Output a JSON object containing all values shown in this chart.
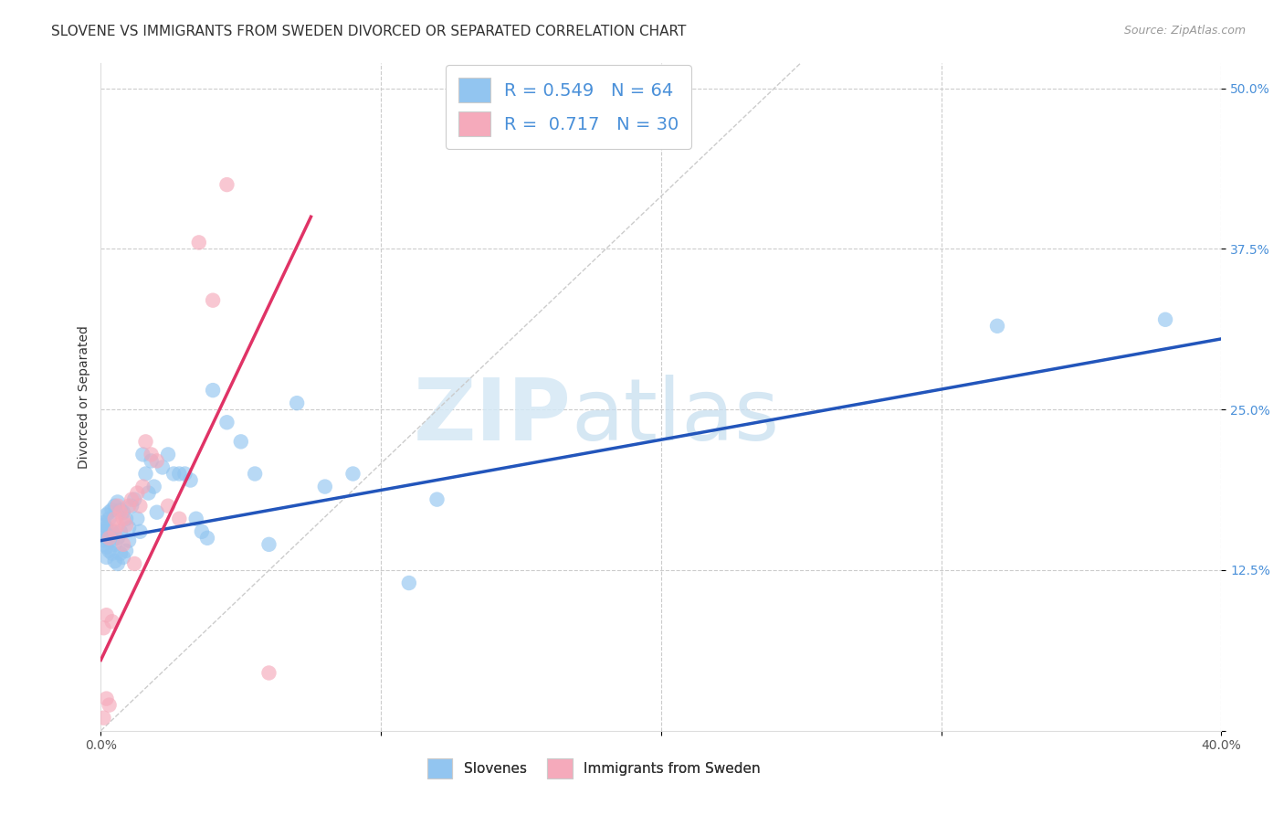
{
  "title": "SLOVENE VS IMMIGRANTS FROM SWEDEN DIVORCED OR SEPARATED CORRELATION CHART",
  "source_text": "Source: ZipAtlas.com",
  "ylabel": "Divorced or Separated",
  "xlim": [
    0.0,
    0.4
  ],
  "ylim": [
    0.0,
    0.52
  ],
  "legend_R1": "0.549",
  "legend_N1": "64",
  "legend_R2": "0.717",
  "legend_N2": "30",
  "blue_color": "#92C5F0",
  "pink_color": "#F5AABB",
  "blue_line_color": "#2255BB",
  "pink_line_color": "#E03366",
  "diag_color": "#CCCCCC",
  "grid_color": "#CCCCCC",
  "background_color": "#FFFFFF",
  "watermark_text": "ZIPatlas",
  "title_fontsize": 11,
  "label_fontsize": 10,
  "tick_fontsize": 10,
  "tick_color_y": "#4A90D9",
  "tick_color_x": "#555555",
  "legend_text_color": "#4A90D9",
  "text_color": "#333333",
  "source_color": "#999999",
  "slovene_x": [
    0.001,
    0.001,
    0.001,
    0.001,
    0.001,
    0.002,
    0.002,
    0.002,
    0.002,
    0.002,
    0.003,
    0.003,
    0.003,
    0.003,
    0.004,
    0.004,
    0.004,
    0.004,
    0.005,
    0.005,
    0.005,
    0.006,
    0.006,
    0.006,
    0.007,
    0.007,
    0.007,
    0.008,
    0.008,
    0.009,
    0.009,
    0.01,
    0.01,
    0.011,
    0.012,
    0.013,
    0.014,
    0.015,
    0.016,
    0.017,
    0.018,
    0.019,
    0.02,
    0.022,
    0.024,
    0.026,
    0.028,
    0.03,
    0.032,
    0.034,
    0.036,
    0.038,
    0.04,
    0.045,
    0.05,
    0.055,
    0.06,
    0.07,
    0.08,
    0.09,
    0.11,
    0.12,
    0.32,
    0.38
  ],
  "slovene_y": [
    0.155,
    0.148,
    0.16,
    0.145,
    0.162,
    0.15,
    0.158,
    0.143,
    0.168,
    0.135,
    0.14,
    0.17,
    0.152,
    0.165,
    0.138,
    0.172,
    0.148,
    0.155,
    0.132,
    0.175,
    0.145,
    0.13,
    0.178,
    0.15,
    0.138,
    0.172,
    0.155,
    0.135,
    0.17,
    0.14,
    0.165,
    0.158,
    0.148,
    0.175,
    0.18,
    0.165,
    0.155,
    0.215,
    0.2,
    0.185,
    0.21,
    0.19,
    0.17,
    0.205,
    0.215,
    0.2,
    0.2,
    0.2,
    0.195,
    0.165,
    0.155,
    0.15,
    0.265,
    0.24,
    0.225,
    0.2,
    0.145,
    0.255,
    0.19,
    0.2,
    0.115,
    0.18,
    0.315,
    0.32
  ],
  "sweden_x": [
    0.001,
    0.001,
    0.002,
    0.002,
    0.003,
    0.003,
    0.004,
    0.005,
    0.005,
    0.006,
    0.006,
    0.007,
    0.008,
    0.008,
    0.009,
    0.01,
    0.011,
    0.012,
    0.013,
    0.014,
    0.015,
    0.016,
    0.018,
    0.02,
    0.024,
    0.028,
    0.035,
    0.04,
    0.045,
    0.06
  ],
  "sweden_y": [
    0.01,
    0.08,
    0.025,
    0.09,
    0.02,
    0.15,
    0.085,
    0.155,
    0.165,
    0.16,
    0.175,
    0.17,
    0.145,
    0.165,
    0.16,
    0.175,
    0.18,
    0.13,
    0.185,
    0.175,
    0.19,
    0.225,
    0.215,
    0.21,
    0.175,
    0.165,
    0.38,
    0.335,
    0.425,
    0.045
  ],
  "blue_trend_x": [
    0.0,
    0.4
  ],
  "blue_trend_y": [
    0.148,
    0.305
  ],
  "pink_trend_x": [
    0.0,
    0.075
  ],
  "pink_trend_y": [
    0.055,
    0.4
  ]
}
